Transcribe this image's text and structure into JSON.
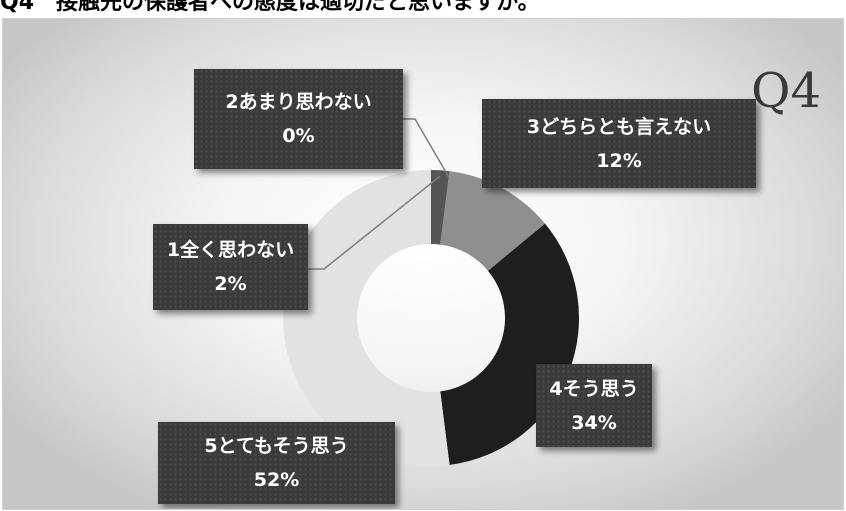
{
  "heading": "Q4　接触先の保護者への態度は適切だと思いますか。",
  "question_label": "Q4",
  "chart_data": {
    "type": "pie",
    "title": "",
    "categories": [
      "1全く思わない",
      "2あまり思わない",
      "3どちらとも言えない",
      "4そう思う",
      "5とてもそう思う"
    ],
    "values": [
      2,
      0,
      12,
      34,
      52
    ],
    "value_labels": [
      "2%",
      "0%",
      "12%",
      "34%",
      "52%"
    ],
    "colors": [
      "#555555",
      "#888888",
      "#8f8f8f",
      "#1e1e1e",
      "#e2e2e2"
    ],
    "legend": "none"
  }
}
